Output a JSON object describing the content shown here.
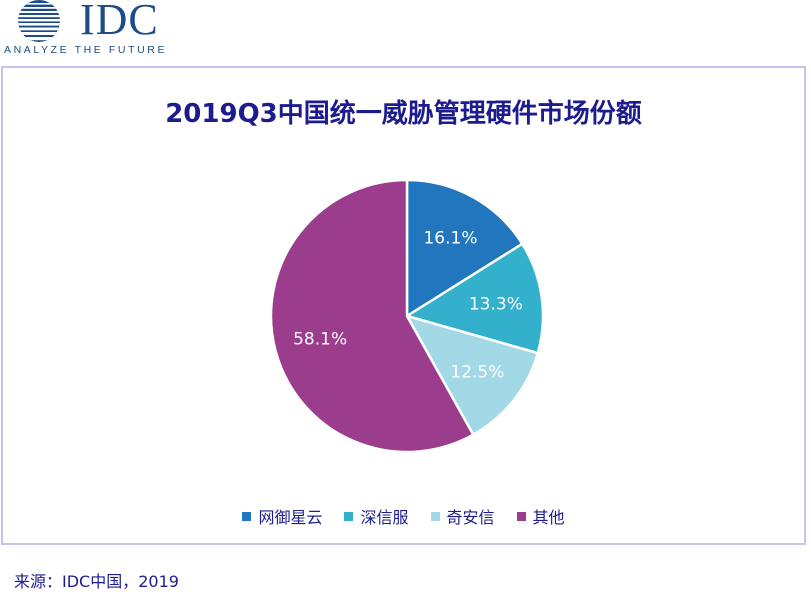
{
  "logo": {
    "text": "IDC",
    "tagline": "ANALYZE THE FUTURE"
  },
  "chart_data": {
    "type": "pie",
    "title": "2019Q3中国统一威胁管理硬件市场份额",
    "categories": [
      "网御星云",
      "深信服",
      "奇安信",
      "其他"
    ],
    "values": [
      16.1,
      13.3,
      12.5,
      58.1
    ],
    "labels": [
      "16.1%",
      "13.3%",
      "12.5%",
      "58.1%"
    ],
    "colors": [
      "#2276bd",
      "#33b0cc",
      "#a3d8e6",
      "#9b3d8c"
    ],
    "legend_position": "bottom"
  },
  "source": "来源：IDC中国，2019"
}
